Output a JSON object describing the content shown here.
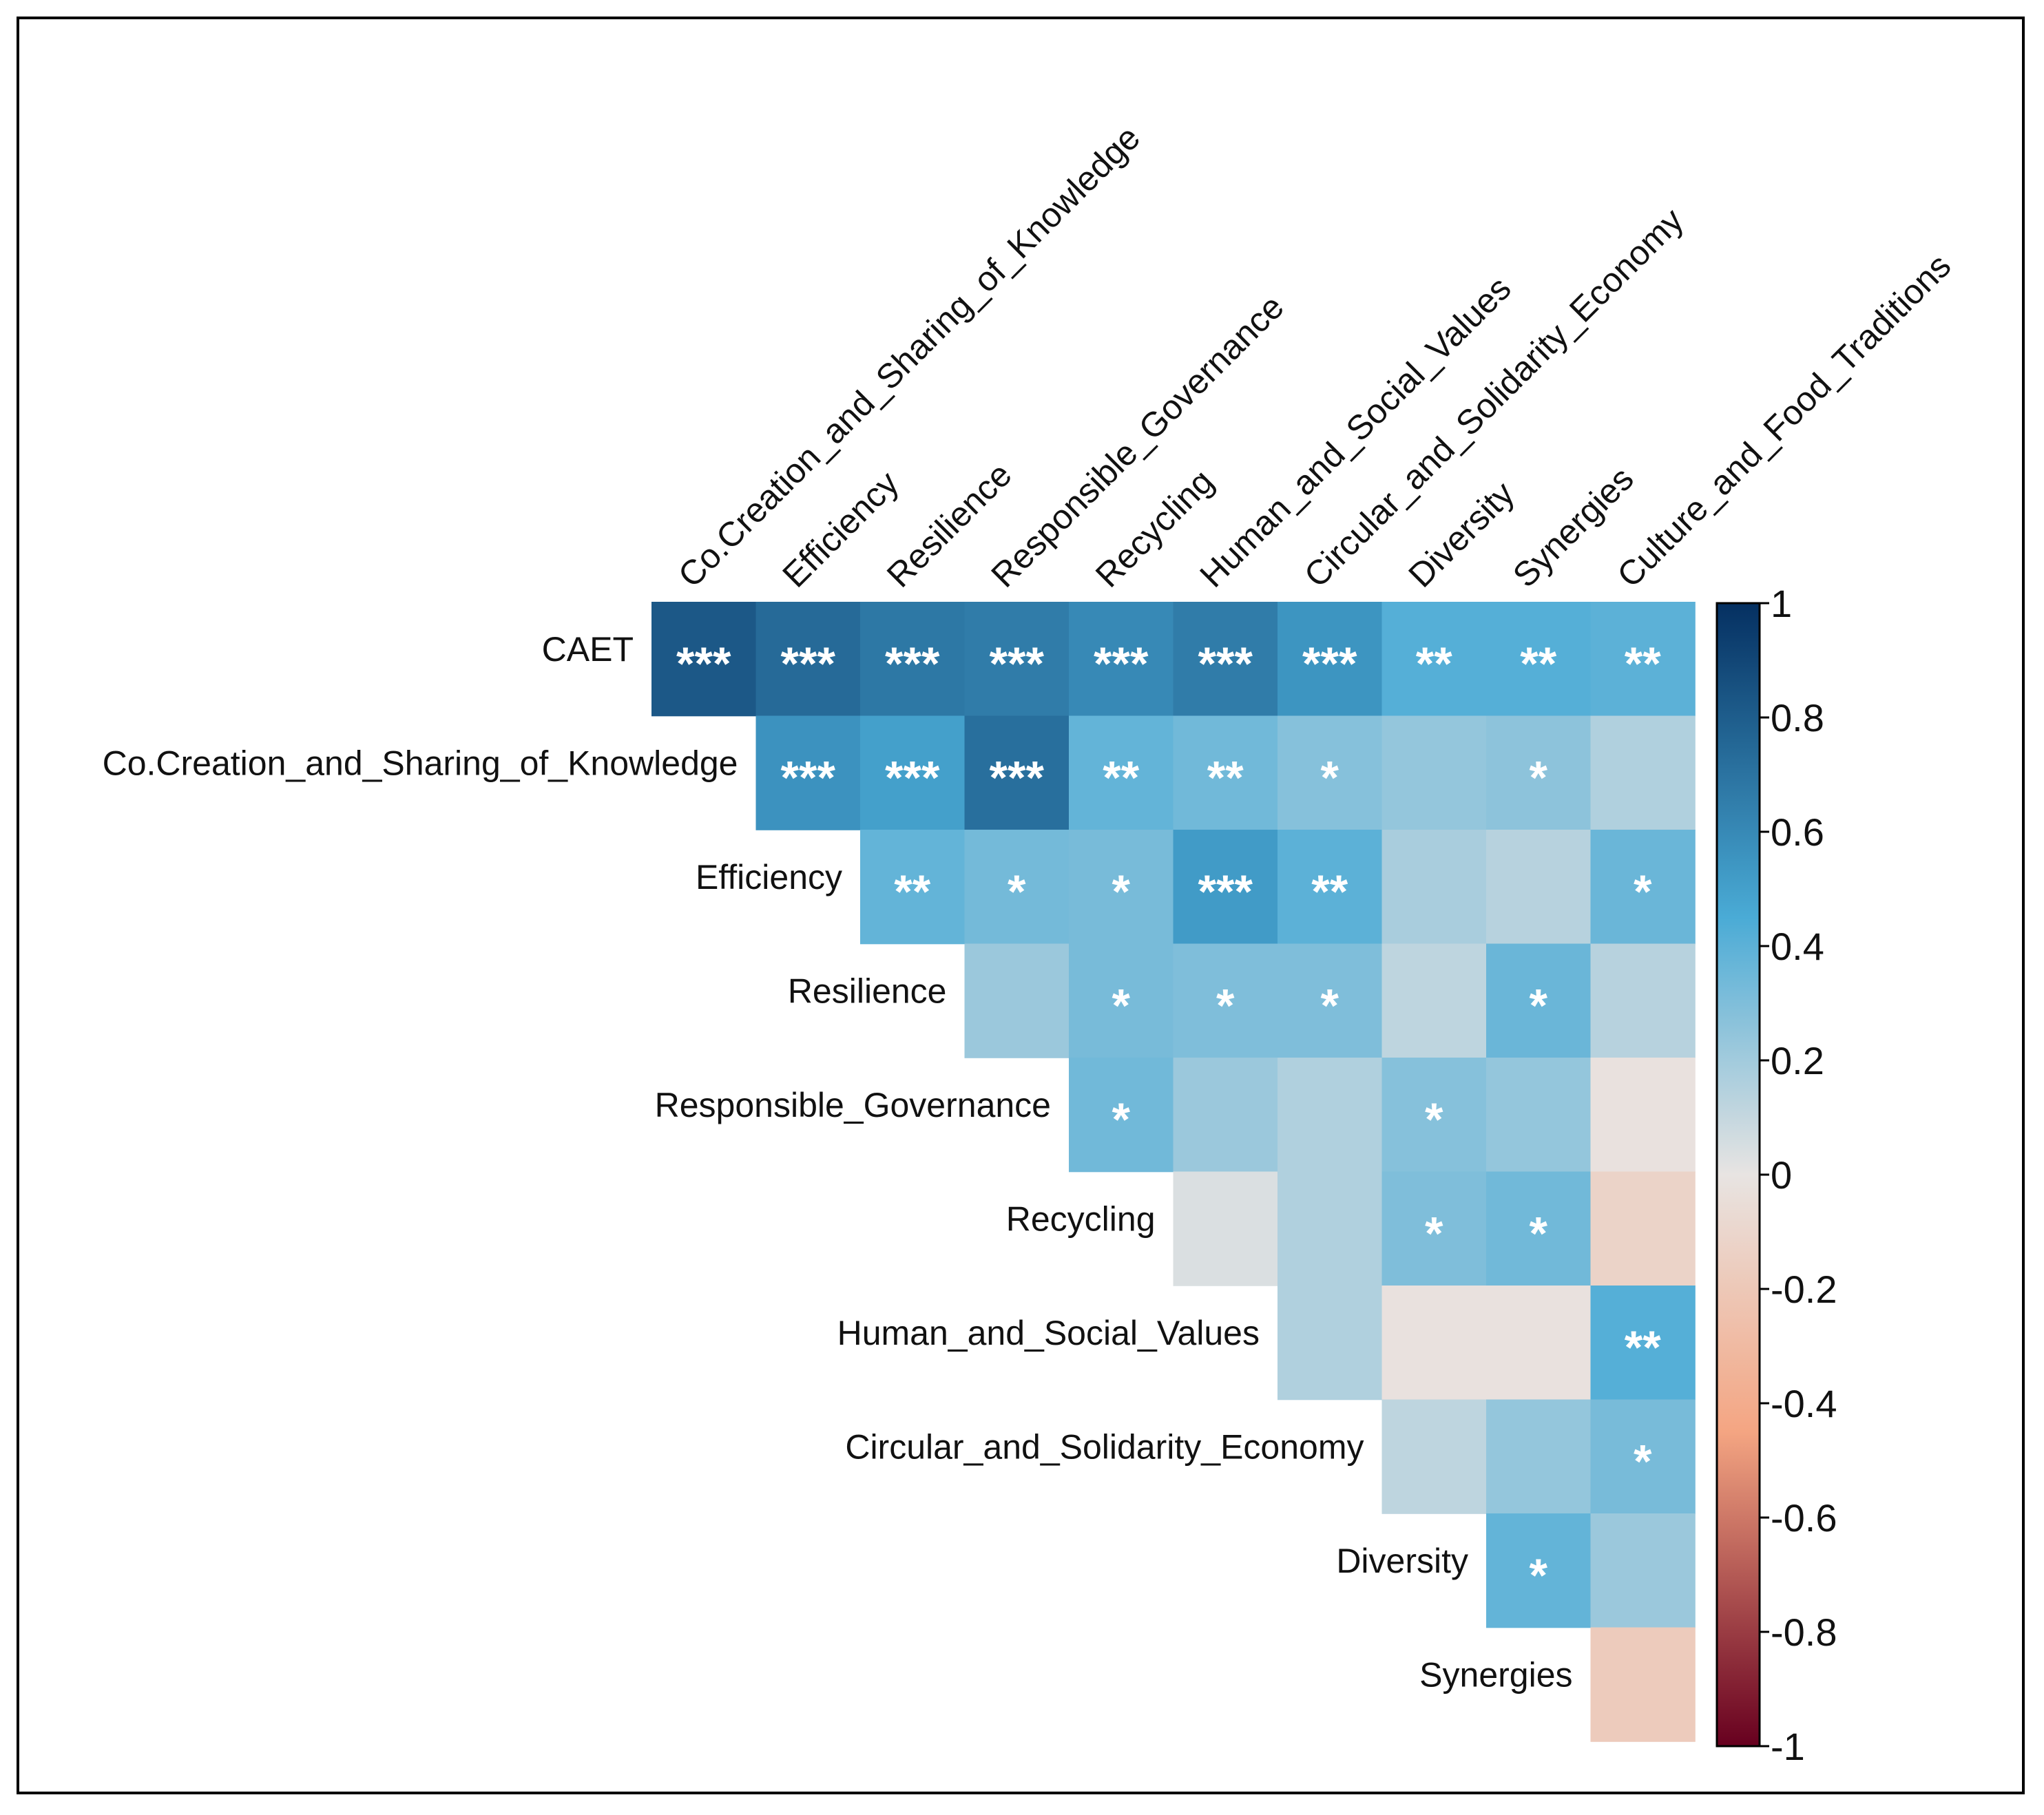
{
  "chart_data": {
    "type": "heatmap",
    "title": "",
    "row_labels": [
      "CAET",
      "Co.Creation_and_Sharing_of_Knowledge",
      "Efficiency",
      "Resilience",
      "Responsible_Governance",
      "Recycling",
      "Human_and_Social_Values",
      "Circular_and_Solidarity_Economy",
      "Diversity",
      "Synergies"
    ],
    "column_labels": [
      "Co.Creation_and_Sharing_of_Knowledge",
      "Efficiency",
      "Resilience",
      "Responsible_Governance",
      "Recycling",
      "Human_and_Social_Values",
      "Circular_and_Solidarity_Economy",
      "Diversity",
      "Synergies",
      "Culture_and_Food_Traditions"
    ],
    "layout": "upper-triangle",
    "values": [
      [
        0.82,
        0.74,
        0.68,
        0.66,
        0.6,
        0.66,
        0.55,
        0.42,
        0.42,
        0.4
      ],
      [
        null,
        0.56,
        0.5,
        0.72,
        0.38,
        0.34,
        0.28,
        0.24,
        0.26,
        0.16
      ],
      [
        null,
        null,
        0.38,
        0.33,
        0.32,
        0.52,
        0.4,
        0.18,
        0.14,
        0.36
      ],
      [
        null,
        null,
        null,
        0.22,
        0.32,
        0.3,
        0.3,
        0.12,
        0.36,
        0.14
      ],
      [
        null,
        null,
        null,
        null,
        0.34,
        0.22,
        0.16,
        0.28,
        0.24,
        -0.02
      ],
      [
        null,
        null,
        null,
        null,
        null,
        0.04,
        0.16,
        0.3,
        0.34,
        -0.12
      ],
      [
        null,
        null,
        null,
        null,
        null,
        null,
        0.16,
        -0.02,
        -0.02,
        0.42
      ],
      [
        null,
        null,
        null,
        null,
        null,
        null,
        null,
        0.12,
        0.24,
        0.32
      ],
      [
        null,
        null,
        null,
        null,
        null,
        null,
        null,
        null,
        0.38,
        0.22
      ],
      [
        null,
        null,
        null,
        null,
        null,
        null,
        null,
        null,
        null,
        -0.18
      ]
    ],
    "significance": [
      [
        "***",
        "***",
        "***",
        "***",
        "***",
        "***",
        "***",
        "**",
        "**",
        "**"
      ],
      [
        "",
        "***",
        "***",
        "***",
        "**",
        "**",
        "*",
        "",
        "*",
        ""
      ],
      [
        "",
        "",
        "**",
        "*",
        "*",
        "***",
        "**",
        "",
        "",
        "*"
      ],
      [
        "",
        "",
        "",
        "",
        "*",
        "*",
        "*",
        "",
        "*",
        ""
      ],
      [
        "",
        "",
        "",
        "",
        "*",
        "",
        "",
        "*",
        "",
        ""
      ],
      [
        "",
        "",
        "",
        "",
        "",
        "",
        "",
        "*",
        "*",
        ""
      ],
      [
        "",
        "",
        "",
        "",
        "",
        "",
        "",
        "",
        "",
        "**"
      ],
      [
        "",
        "",
        "",
        "",
        "",
        "",
        "",
        "",
        "",
        "*"
      ],
      [
        "",
        "",
        "",
        "",
        "",
        "",
        "",
        "",
        "*",
        ""
      ],
      [
        "",
        "",
        "",
        "",
        "",
        "",
        "",
        "",
        "",
        ""
      ]
    ],
    "colorbar": {
      "range": [
        -1,
        1
      ],
      "ticks": [
        1,
        0.8,
        0.6,
        0.4,
        0.2,
        0,
        -0.2,
        -0.4,
        -0.6,
        -0.8,
        -1
      ],
      "tick_labels": [
        "1",
        "0.8",
        "0.6",
        "0.4",
        "0.2",
        "0",
        "-0.2",
        "-0.4",
        "-0.6",
        "-0.8",
        "-1"
      ],
      "colors": {
        "negative_end": "#67001f",
        "negative_mid": "#f4a582",
        "zero": "#e8e4e2",
        "positive_mid": "#4aabd6",
        "positive_end": "#053061"
      },
      "legend_position": "right"
    },
    "xlabel": "",
    "ylabel": ""
  }
}
